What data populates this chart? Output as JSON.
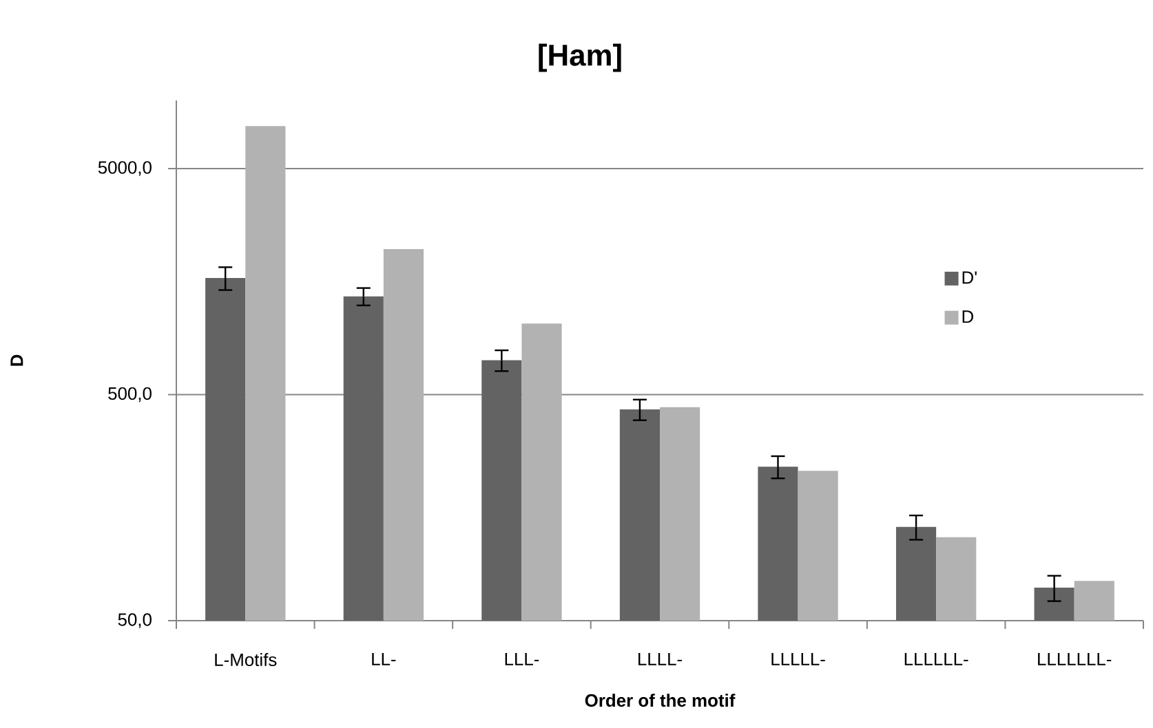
{
  "chart_data": {
    "type": "bar",
    "title": "[Ham]",
    "xlabel": "Order of the motif",
    "ylabel": "D",
    "categories": [
      "L-Motifs",
      "LL-",
      "LLL-",
      "LLLL-",
      "LLLLL-",
      "LLLLLL-",
      "LLLLLLL-"
    ],
    "series": [
      {
        "name": "D'",
        "color": "#636363",
        "values": [
          1640,
          1360,
          710,
          430,
          240,
          130,
          70
        ],
        "errors": [
          190,
          120,
          75,
          45,
          27,
          16,
          9
        ]
      },
      {
        "name": "D",
        "color": "#b2b2b2",
        "values": [
          7700,
          2200,
          1030,
          440,
          230,
          117,
          75
        ]
      }
    ],
    "log": true,
    "ylim": [
      50,
      10000
    ],
    "yticks": [
      {
        "value": 50,
        "label": "50,0"
      },
      {
        "value": 500,
        "label": "500,0"
      },
      {
        "value": 5000,
        "label": "5000,0"
      }
    ],
    "grid": "y",
    "legend": "right"
  }
}
